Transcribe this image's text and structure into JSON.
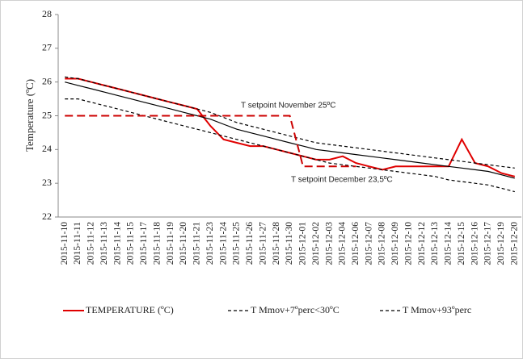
{
  "chart_data": {
    "type": "line",
    "y_label": "Temperature (ºC)",
    "categories": [
      "2015-11-10",
      "2015-11-11",
      "2015-11-12",
      "2015-11-13",
      "2015-11-14",
      "2015-11-15",
      "2015-11-17",
      "2015-11-18",
      "2015-11-19",
      "2015-11-20",
      "2015-11-21",
      "2015-11-23",
      "2015-11-24",
      "2015-11-25",
      "2015-11-26",
      "2015-11-27",
      "2015-11-28",
      "2015-11-30",
      "2015-12-01",
      "2015-12-02",
      "2015-12-03",
      "2015-12-04",
      "2015-12-06",
      "2015-12-07",
      "2015-12-08",
      "2015-12-09",
      "2015-12-10",
      "2015-12-12",
      "2015-12-13",
      "2015-12-14",
      "2015-12-15",
      "2015-12-16",
      "2015-12-17",
      "2015-12-19",
      "2015-12-20"
    ],
    "series": [
      {
        "name": "TEMPERATURE (ºC)",
        "color": "#e00000",
        "dash": "none",
        "width": 2,
        "values": [
          26.1,
          26.1,
          26.0,
          25.9,
          25.8,
          25.7,
          25.6,
          25.5,
          25.4,
          25.3,
          25.2,
          24.7,
          24.3,
          24.2,
          24.1,
          24.1,
          24.0,
          23.9,
          23.8,
          23.7,
          23.7,
          23.8,
          23.6,
          23.5,
          23.4,
          23.5,
          23.5,
          23.5,
          23.5,
          23.5,
          24.3,
          23.6,
          23.5,
          23.3,
          23.2
        ]
      },
      {
        "name": "T Mmov+7ºperc<30ºC",
        "color": "#000000",
        "dash": "4 3",
        "width": 1.2,
        "values": [
          25.5,
          25.5,
          25.4,
          25.3,
          25.2,
          25.1,
          25.0,
          24.9,
          24.8,
          24.7,
          24.6,
          24.5,
          24.4,
          24.3,
          24.2,
          24.1,
          24.0,
          23.9,
          23.8,
          23.7,
          23.6,
          23.55,
          23.5,
          23.45,
          23.4,
          23.35,
          23.3,
          23.25,
          23.2,
          23.1,
          23.05,
          23.0,
          22.95,
          22.85,
          22.75
        ]
      },
      {
        "name": "T Mmov+93ºperc",
        "color": "#000000",
        "dash": "4 3",
        "width": 1.2,
        "values": [
          26.15,
          26.1,
          26.0,
          25.9,
          25.8,
          25.7,
          25.6,
          25.5,
          25.4,
          25.3,
          25.2,
          25.1,
          24.95,
          24.8,
          24.7,
          24.6,
          24.5,
          24.4,
          24.3,
          24.2,
          24.15,
          24.1,
          24.05,
          24.0,
          23.95,
          23.9,
          23.85,
          23.8,
          23.75,
          23.7,
          23.65,
          23.6,
          23.55,
          23.5,
          23.45
        ]
      },
      {
        "color": "#000000",
        "dash": "none",
        "width": 1.2,
        "values": [
          26.0,
          25.9,
          25.8,
          25.7,
          25.6,
          25.5,
          25.4,
          25.3,
          25.2,
          25.1,
          25.0,
          24.9,
          24.75,
          24.6,
          24.5,
          24.4,
          24.3,
          24.2,
          24.1,
          24.0,
          23.95,
          23.9,
          23.85,
          23.8,
          23.75,
          23.7,
          23.65,
          23.6,
          23.55,
          23.5,
          23.45,
          23.4,
          23.35,
          23.25,
          23.15
        ]
      },
      {
        "color": "#cc0000",
        "dash": "10 5",
        "width": 2,
        "values": [
          25,
          25,
          25,
          25,
          25,
          25,
          25,
          25,
          25,
          25,
          25,
          25,
          25,
          25,
          25,
          25,
          25,
          25,
          23.5,
          23.5,
          23.5,
          23.5,
          23.5,
          null,
          null,
          null,
          null,
          null,
          null,
          null,
          null,
          null,
          null,
          null,
          null
        ]
      }
    ],
    "annotations": [
      "T setpoint November 25ºC",
      "T setpoint December 23,5ºC"
    ],
    "ylim": [
      22,
      28
    ],
    "yticks": [
      22,
      23,
      24,
      25,
      26,
      27,
      28
    ],
    "grid": false
  }
}
